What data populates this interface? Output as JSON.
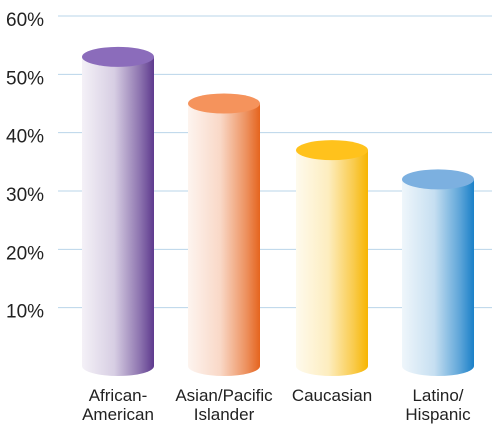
{
  "chart_data": {
    "type": "cylinder-bar",
    "categories": [
      "African-\nAmerican",
      "Asian/Pacific\nIslander",
      "Caucasian",
      "Latino/\nHispanic"
    ],
    "values": [
      53,
      45,
      37,
      32
    ],
    "colors": [
      "#5e3a8e",
      "#e5641e",
      "#f7b500",
      "#1a80c8"
    ],
    "cap_colors": [
      "#8b6cbb",
      "#f5935c",
      "#ffc21c",
      "#7cb0e0"
    ],
    "ylim": [
      0,
      60
    ],
    "yticks": [
      {
        "value": 10,
        "label": "10%"
      },
      {
        "value": 20,
        "label": "20%"
      },
      {
        "value": 30,
        "label": "30%"
      },
      {
        "value": 40,
        "label": "40%"
      },
      {
        "value": 50,
        "label": "50%"
      },
      {
        "value": 60,
        "label": "60%"
      }
    ],
    "grid": true
  }
}
